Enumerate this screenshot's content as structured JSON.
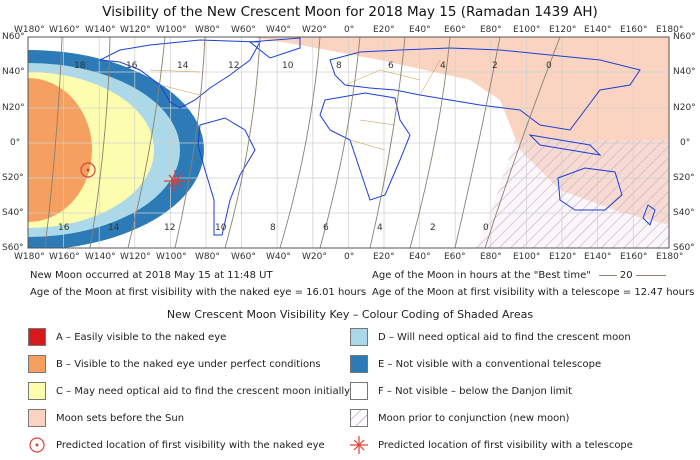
{
  "title": "Visibility of the New Crescent Moon for 2018 May 15 (Ramadan 1439 AH)",
  "map": {
    "lon_labels": [
      "W180°",
      "W160°",
      "W140°",
      "W120°",
      "W100°",
      "W80°",
      "W60°",
      "W40°",
      "W20°",
      "0°",
      "E20°",
      "E40°",
      "E60°",
      "E80°",
      "E100°",
      "E120°",
      "E140°",
      "E160°",
      "E180°"
    ],
    "lat_labels": [
      "N60°",
      "N40°",
      "N20°",
      "0°",
      "S20°",
      "S40°",
      "S60°"
    ],
    "contour_top_labels": [
      "18",
      "16",
      "14",
      "12",
      "10",
      "8",
      "6",
      "4",
      "2",
      "0"
    ],
    "contour_bottom_labels": [
      "16",
      "14",
      "12",
      "10",
      "8",
      "6",
      "4",
      "2",
      "0"
    ]
  },
  "info": {
    "new_moon": "New Moon occurred at 2018 May 15 at 11:48 UT",
    "age_naked_eye": "Age of the Moon at first visibility with the naked eye = 16.01 hours",
    "age_best_time": "Age of the Moon in hours at the \"Best time\"",
    "age_best_time_sample": "20",
    "age_telescope": "Age of the Moon at first visibility with a telescope = 12.47 hours"
  },
  "key": {
    "title": "New Crescent Moon Visibility Key – Colour Coding of Shaded Areas",
    "a": "A – Easily visible to the naked eye",
    "b": "B – Visible to the naked eye under perfect conditions",
    "c": "C – May need optical aid to find the crescent moon initially",
    "sets": "Moon sets before the Sun",
    "naked_loc": "Predicted location of first visibility with the naked eye",
    "d": "D – Will need optical aid to find the crescent moon",
    "e": "E – Not visible with a conventional telescope",
    "f": "F – Not visible – below the Danjon limit",
    "prior": "Moon prior to conjunction (new moon)",
    "tele_loc": "Predicted location of first visibility with a telescope"
  },
  "colors": {
    "a": "#d7191c",
    "b": "#f5a060",
    "c": "#fdfdb0",
    "d": "#abd9e9",
    "e": "#2c7bb6",
    "f": "#ffffff",
    "sets": "#fad4c0",
    "hatch": "#b090b0",
    "coast": "#1a3fd8",
    "borders": "#c8963c"
  }
}
